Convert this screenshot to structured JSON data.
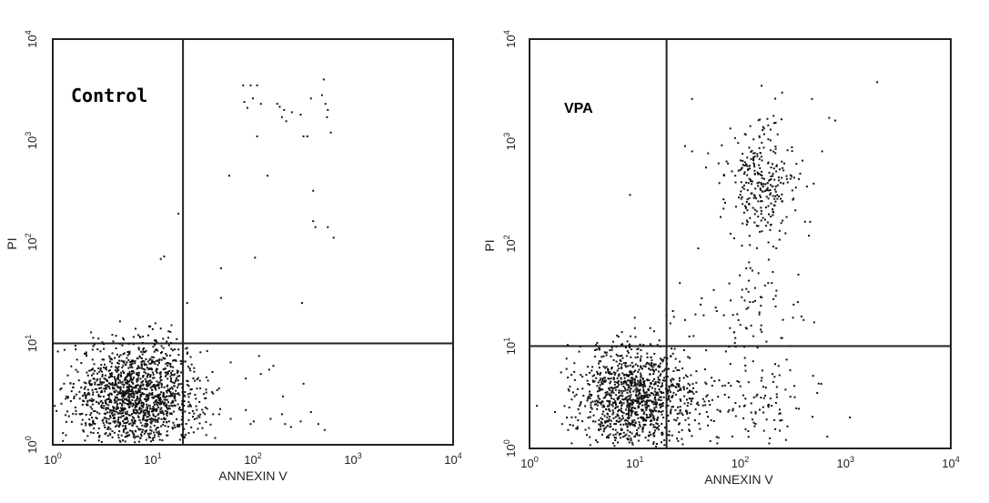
{
  "chart_data": [
    {
      "type": "scatter",
      "title": "Control",
      "xlabel": "ANNEXIN V",
      "ylabel": "PI",
      "xscale": "log",
      "yscale": "log",
      "xlim": [
        1,
        10000
      ],
      "ylim": [
        1,
        10000
      ],
      "x_ticks": [
        {
          "base": "10",
          "exp": "0"
        },
        {
          "base": "10",
          "exp": "1"
        },
        {
          "base": "10",
          "exp": "2"
        },
        {
          "base": "10",
          "exp": "3"
        },
        {
          "base": "10",
          "exp": "4"
        }
      ],
      "y_ticks": [
        {
          "base": "10",
          "exp": "0"
        },
        {
          "base": "10",
          "exp": "1"
        },
        {
          "base": "10",
          "exp": "2"
        },
        {
          "base": "10",
          "exp": "3"
        },
        {
          "base": "10",
          "exp": "4"
        }
      ],
      "gates": {
        "x": 20,
        "y": 10
      },
      "grid": false,
      "series": [
        {
          "clusters": [
            {
              "cx": 7,
              "cy": 3,
              "sx": 0.32,
              "sy": 0.27,
              "n": 1500
            }
          ],
          "points": [
            [
              80,
              3500
            ],
            [
              95,
              3500
            ],
            [
              110,
              3500
            ],
            [
              82,
              2400
            ],
            [
              88,
              2100
            ],
            [
              100,
              2600
            ],
            [
              120,
              2300
            ],
            [
              110,
              1100
            ],
            [
              175,
              2300
            ],
            [
              185,
              2150
            ],
            [
              205,
              2000
            ],
            [
              195,
              1700
            ],
            [
              215,
              1550
            ],
            [
              245,
              1900
            ],
            [
              300,
              1800
            ],
            [
              320,
              1100
            ],
            [
              350,
              1100
            ],
            [
              380,
              2600
            ],
            [
              510,
              4000
            ],
            [
              490,
              2800
            ],
            [
              530,
              2300
            ],
            [
              560,
              2000
            ],
            [
              600,
              1200
            ],
            [
              550,
              1700
            ],
            [
              58,
              450
            ],
            [
              140,
              450
            ],
            [
              400,
              320
            ],
            [
              400,
              160
            ],
            [
              420,
              140
            ],
            [
              560,
              140
            ],
            [
              640,
              110
            ],
            [
              48,
              55
            ],
            [
              105,
              70
            ],
            [
              310,
              25
            ],
            [
              48,
              28
            ],
            [
              12,
              68
            ],
            [
              13,
              72
            ],
            [
              18,
              190
            ],
            [
              22,
              25
            ],
            [
              9,
              12
            ],
            [
              12,
              14
            ],
            [
              22,
              9
            ],
            [
              115,
              7.5
            ],
            [
              160,
              6
            ],
            [
              320,
              4
            ],
            [
              40,
              2
            ],
            [
              46,
              2
            ],
            [
              60,
              1.8
            ],
            [
              85,
              2.2
            ],
            [
              95,
              1.6
            ],
            [
              102,
              1.7
            ],
            [
              150,
              1.8
            ],
            [
              195,
              2
            ],
            [
              210,
              1.6
            ],
            [
              240,
              1.5
            ],
            [
              300,
              1.7
            ],
            [
              380,
              2.1
            ],
            [
              450,
              1.6
            ],
            [
              520,
              1.4
            ],
            [
              34,
              3.5
            ],
            [
              40,
              3.2
            ],
            [
              60,
              6.5
            ],
            [
              85,
              4.5
            ],
            [
              120,
              5
            ],
            [
              145,
              5.5
            ],
            [
              200,
              3
            ]
          ]
        }
      ]
    },
    {
      "type": "scatter",
      "title": "VPA",
      "xlabel": "ANNEXIN V",
      "ylabel": "PI",
      "xscale": "log",
      "yscale": "log",
      "xlim": [
        1,
        10000
      ],
      "ylim": [
        1,
        10000
      ],
      "x_ticks": [
        {
          "base": "10",
          "exp": "0"
        },
        {
          "base": "10",
          "exp": "1"
        },
        {
          "base": "10",
          "exp": "2"
        },
        {
          "base": "10",
          "exp": "3"
        },
        {
          "base": "10",
          "exp": "4"
        }
      ],
      "y_ticks": [
        {
          "base": "10",
          "exp": "0"
        },
        {
          "base": "10",
          "exp": "1"
        },
        {
          "base": "10",
          "exp": "2"
        },
        {
          "base": "10",
          "exp": "3"
        },
        {
          "base": "10",
          "exp": "4"
        }
      ],
      "gates": {
        "x": 20,
        "y": 10
      },
      "grid": false,
      "series": [
        {
          "clusters": [
            {
              "cx": 10,
              "cy": 3,
              "sx": 0.28,
              "sy": 0.25,
              "n": 1150
            },
            {
              "cx": 160,
              "cy": 400,
              "sx": 0.17,
              "sy": 0.33,
              "n": 300
            },
            {
              "cx": 130,
              "cy": 25,
              "sx": 0.27,
              "sy": 0.23,
              "n": 60
            },
            {
              "cx": 120,
              "cy": 3,
              "sx": 0.35,
              "sy": 0.23,
              "n": 130
            }
          ],
          "points": [
            [
              2000,
              3800
            ],
            [
              250,
              3000
            ],
            [
              160,
              3500
            ],
            [
              480,
              2600
            ],
            [
              35,
              2600
            ],
            [
              700,
              1700
            ],
            [
              800,
              1600
            ],
            [
              600,
              800
            ],
            [
              30,
              900
            ],
            [
              35,
              800
            ],
            [
              9,
              300
            ],
            [
              40,
              90
            ],
            [
              450,
              120
            ],
            [
              10,
              15
            ],
            [
              14,
              15
            ],
            [
              20,
              20
            ],
            [
              23,
              22
            ],
            [
              30,
              18
            ],
            [
              45,
              20
            ],
            [
              60,
              22
            ],
            [
              70,
              20
            ],
            [
              80,
              15
            ],
            [
              90,
              12
            ],
            [
              400,
              18
            ],
            [
              250,
              12
            ],
            [
              300,
              10
            ]
          ]
        }
      ]
    }
  ]
}
